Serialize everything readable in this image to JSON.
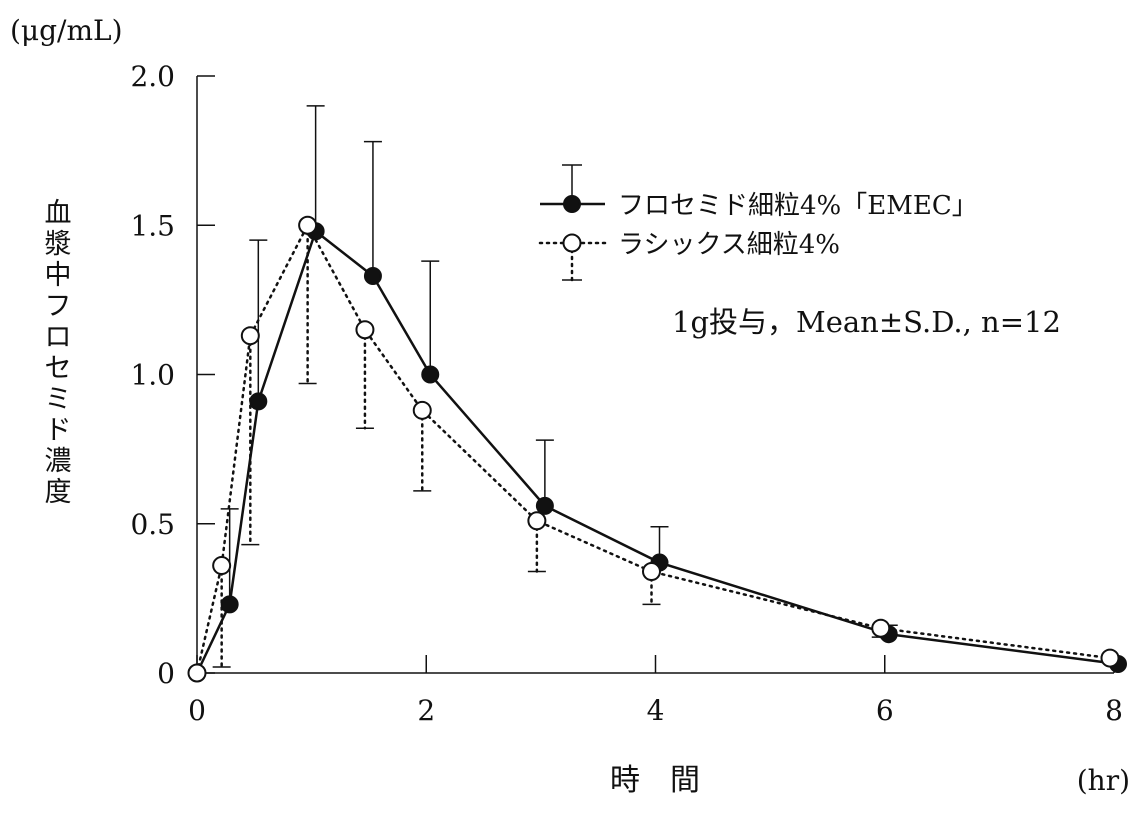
{
  "chart_data": {
    "type": "line",
    "unit_label": "(μg/mL)",
    "ylabel": "血漿中フロセミド濃度",
    "xlabel": "時　間",
    "x_unit_label": "(hr)",
    "annotation": "1g投与，Mean±S.D., n=12",
    "xlim": [
      0,
      8
    ],
    "ylim": [
      0,
      2.0
    ],
    "x_ticks": [
      0,
      2,
      4,
      6,
      8
    ],
    "x_tick_labels": [
      "0",
      "2",
      "4",
      "6",
      "8"
    ],
    "y_ticks": [
      0,
      0.5,
      1.0,
      1.5,
      2.0
    ],
    "y_tick_labels": [
      "0",
      "0.5",
      "1.0",
      "1.5",
      "2.0"
    ],
    "legend_position": "top-right",
    "series": [
      {
        "name": "フロセミド細粒4%「EMEC」",
        "marker": "filled-circle",
        "line": "solid",
        "color": "#111111",
        "x": [
          0,
          0.25,
          0.5,
          1,
          1.5,
          2,
          3,
          4,
          6,
          8
        ],
        "y": [
          0,
          0.23,
          0.91,
          1.48,
          1.33,
          1.0,
          0.56,
          0.37,
          0.13,
          0.03
        ],
        "sd": [
          0,
          0.32,
          0.54,
          0.42,
          0.45,
          0.38,
          0.22,
          0.12,
          0.03,
          0
        ]
      },
      {
        "name": "ラシックス細粒4%",
        "marker": "open-circle",
        "line": "dotted",
        "color": "#111111",
        "x": [
          0,
          0.25,
          0.5,
          1,
          1.5,
          2,
          3,
          4,
          6,
          8
        ],
        "y": [
          0,
          0.36,
          1.13,
          1.5,
          1.15,
          0.88,
          0.51,
          0.34,
          0.15,
          0.05
        ],
        "sd": [
          0,
          0.34,
          0.7,
          0.53,
          0.33,
          0.27,
          0.17,
          0.11,
          0.03,
          0
        ]
      }
    ]
  }
}
